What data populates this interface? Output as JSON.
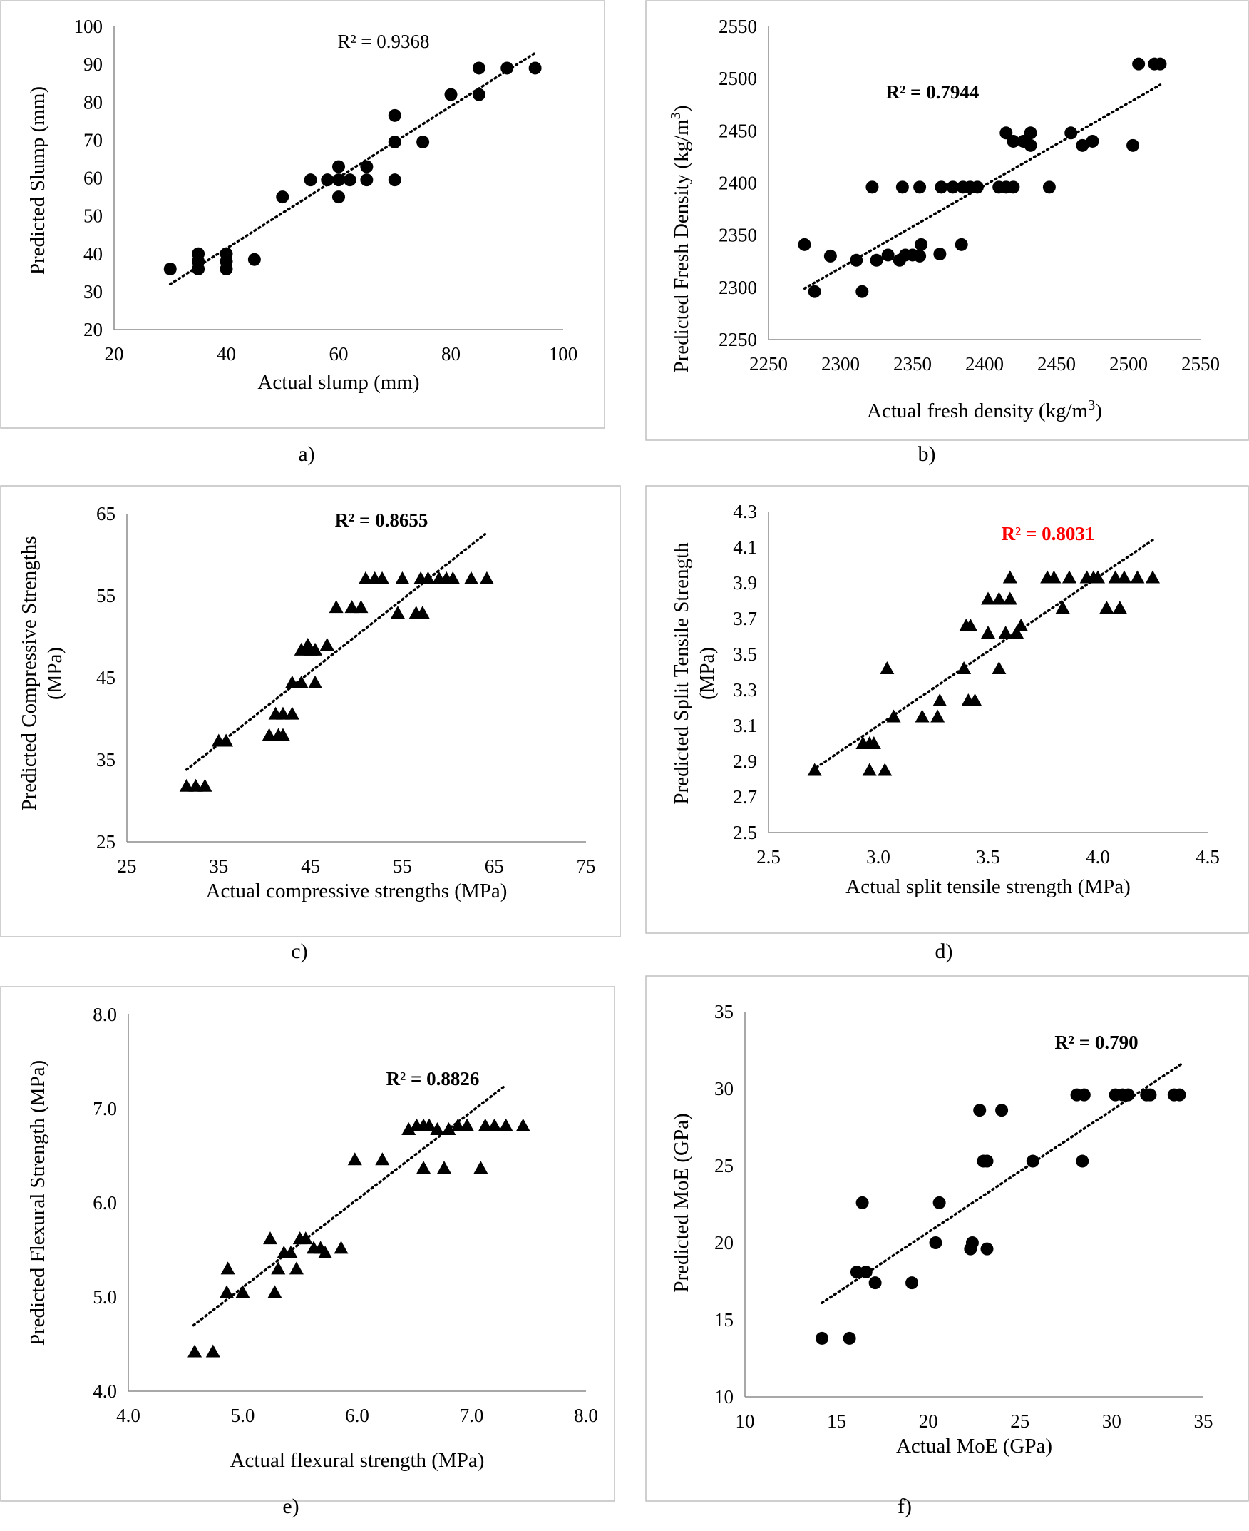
{
  "chart_data": [
    {
      "id": "a",
      "type": "scatter",
      "marker": "circle",
      "panel_label": "a)",
      "xlabel": "Actual slump (mm)",
      "ylabel": "Predicted Slump (mm)",
      "xlim": [
        20,
        100
      ],
      "xticks": [
        20,
        40,
        60,
        80,
        100
      ],
      "ylim": [
        20,
        100
      ],
      "yticks": [
        20,
        30,
        40,
        50,
        60,
        70,
        80,
        90,
        100
      ],
      "tick_decimals": 0,
      "annotation": "R² = 0.9368",
      "annotation_bold": false,
      "annotation_color": "#000000",
      "trendline": {
        "x": [
          30,
          95
        ],
        "y": [
          32,
          93
        ]
      },
      "points": [
        [
          30,
          36
        ],
        [
          35,
          40
        ],
        [
          35,
          36
        ],
        [
          35,
          38
        ],
        [
          40,
          40
        ],
        [
          40,
          38
        ],
        [
          40,
          36
        ],
        [
          45,
          38.5
        ],
        [
          50,
          55
        ],
        [
          55,
          59.5
        ],
        [
          58,
          59.5
        ],
        [
          60,
          63
        ],
        [
          60,
          59.5
        ],
        [
          60,
          55
        ],
        [
          62,
          59.5
        ],
        [
          65,
          63
        ],
        [
          65,
          59.5
        ],
        [
          70,
          76.5
        ],
        [
          70,
          69.5
        ],
        [
          70,
          59.5
        ],
        [
          75,
          69.5
        ],
        [
          80,
          82
        ],
        [
          85,
          89
        ],
        [
          85,
          82
        ],
        [
          90,
          89
        ],
        [
          95,
          89
        ]
      ]
    },
    {
      "id": "b",
      "type": "scatter",
      "marker": "circle",
      "panel_label": "b)",
      "xlabel": "Actual fresh density (kg/m³)",
      "ylabel": "Predicted Fresh Density (kg/m³)",
      "xlim": [
        2250,
        2550
      ],
      "xticks": [
        2250,
        2300,
        2350,
        2400,
        2450,
        2500,
        2550
      ],
      "ylim": [
        2250,
        2550
      ],
      "yticks": [
        2250,
        2300,
        2350,
        2400,
        2450,
        2500,
        2550
      ],
      "tick_decimals": 0,
      "annotation": "R² = 0.7944",
      "annotation_bold": true,
      "annotation_color": "#000000",
      "trendline": {
        "x": [
          2275,
          2522
        ],
        "y": [
          2299,
          2494
        ]
      },
      "points": [
        [
          2275,
          2341
        ],
        [
          2282,
          2296
        ],
        [
          2293,
          2330
        ],
        [
          2311,
          2326
        ],
        [
          2315,
          2296
        ],
        [
          2322,
          2396
        ],
        [
          2325,
          2326
        ],
        [
          2333,
          2331
        ],
        [
          2341,
          2326
        ],
        [
          2345,
          2331
        ],
        [
          2350,
          2331
        ],
        [
          2356,
          2341
        ],
        [
          2355,
          2330
        ],
        [
          2343,
          2396
        ],
        [
          2355,
          2396
        ],
        [
          2370,
          2396
        ],
        [
          2378,
          2396
        ],
        [
          2385,
          2396
        ],
        [
          2390,
          2396
        ],
        [
          2395,
          2396
        ],
        [
          2369,
          2332
        ],
        [
          2384,
          2341
        ],
        [
          2410,
          2396
        ],
        [
          2415,
          2396
        ],
        [
          2420,
          2396
        ],
        [
          2415,
          2448
        ],
        [
          2420,
          2440
        ],
        [
          2427,
          2440
        ],
        [
          2432,
          2436
        ],
        [
          2432,
          2448
        ],
        [
          2445,
          2396
        ],
        [
          2460,
          2448
        ],
        [
          2468,
          2436
        ],
        [
          2475,
          2440
        ],
        [
          2503,
          2436
        ],
        [
          2507,
          2514
        ],
        [
          2518,
          2514
        ],
        [
          2522,
          2514
        ]
      ]
    },
    {
      "id": "c",
      "type": "scatter",
      "marker": "triangle",
      "panel_label": "c)",
      "xlabel": "Actual compressive strengths (MPa)",
      "ylabel": "Predicted Compressive Strengths (MPa)",
      "ylabel_lines": [
        "Predicted Compressive Strengths",
        "(MPa)"
      ],
      "xlim": [
        25,
        75
      ],
      "xticks": [
        25,
        35,
        45,
        55,
        65,
        75
      ],
      "ylim": [
        25,
        65
      ],
      "yticks": [
        25,
        35,
        45,
        55,
        65
      ],
      "tick_decimals": 0,
      "annotation": "R² = 0.8655",
      "annotation_bold": true,
      "annotation_color": "#000000",
      "trendline": {
        "x": [
          31.5,
          64
        ],
        "y": [
          33.8,
          62.5
        ]
      },
      "points": [
        [
          31.5,
          31.8
        ],
        [
          32.5,
          31.8
        ],
        [
          33.5,
          31.8
        ],
        [
          35,
          37.3
        ],
        [
          35.8,
          37.3
        ],
        [
          40.5,
          38
        ],
        [
          41.5,
          38
        ],
        [
          42,
          38
        ],
        [
          41.2,
          40.6
        ],
        [
          42,
          40.6
        ],
        [
          43,
          40.6
        ],
        [
          43,
          44.4
        ],
        [
          44,
          44.4
        ],
        [
          45.5,
          44.4
        ],
        [
          44,
          48.4
        ],
        [
          45,
          48.4
        ],
        [
          45.5,
          48.4
        ],
        [
          44.7,
          49
        ],
        [
          46.8,
          49
        ],
        [
          47.8,
          53.6
        ],
        [
          49.5,
          53.6
        ],
        [
          50.5,
          53.6
        ],
        [
          51,
          57.1
        ],
        [
          52,
          57.1
        ],
        [
          52.8,
          57.1
        ],
        [
          55,
          57.1
        ],
        [
          57,
          57.1
        ],
        [
          57.8,
          57.1
        ],
        [
          59,
          57.1
        ],
        [
          59.8,
          57.1
        ],
        [
          60.5,
          57.1
        ],
        [
          62.5,
          57.1
        ],
        [
          64.2,
          57.1
        ],
        [
          54.5,
          52.9
        ],
        [
          56.5,
          52.9
        ],
        [
          57.2,
          52.9
        ]
      ]
    },
    {
      "id": "d",
      "type": "scatter",
      "marker": "triangle",
      "panel_label": "d)",
      "xlabel": "Actual split tensile strength (MPa)",
      "ylabel": "Predicted Split Tensile Strength (MPa)",
      "ylabel_lines": [
        "Predicted Split Tensile Strength",
        "(MPa)"
      ],
      "xlim": [
        2.5,
        4.5
      ],
      "xticks": [
        2.5,
        3.0,
        3.5,
        4.0,
        4.5
      ],
      "ylim": [
        2.5,
        4.3
      ],
      "yticks": [
        2.5,
        2.7,
        2.9,
        3.1,
        3.3,
        3.5,
        3.7,
        3.9,
        4.1,
        4.3
      ],
      "tick_decimals": 1,
      "annotation": "R² = 0.8031",
      "annotation_bold": true,
      "annotation_color": "#ff0000",
      "trendline": {
        "x": [
          2.7,
          4.25
        ],
        "y": [
          2.85,
          4.14
        ]
      },
      "points": [
        [
          2.71,
          2.85
        ],
        [
          2.96,
          2.85
        ],
        [
          3.03,
          2.85
        ],
        [
          2.93,
          3.0
        ],
        [
          2.96,
          3.0
        ],
        [
          2.98,
          3.0
        ],
        [
          3.04,
          3.42
        ],
        [
          3.07,
          3.15
        ],
        [
          3.2,
          3.15
        ],
        [
          3.27,
          3.15
        ],
        [
          3.28,
          3.24
        ],
        [
          3.41,
          3.24
        ],
        [
          3.44,
          3.24
        ],
        [
          3.39,
          3.42
        ],
        [
          3.55,
          3.42
        ],
        [
          3.4,
          3.66
        ],
        [
          3.42,
          3.66
        ],
        [
          3.5,
          3.62
        ],
        [
          3.58,
          3.62
        ],
        [
          3.63,
          3.62
        ],
        [
          3.65,
          3.66
        ],
        [
          3.5,
          3.81
        ],
        [
          3.55,
          3.81
        ],
        [
          3.6,
          3.81
        ],
        [
          3.6,
          3.93
        ],
        [
          3.77,
          3.93
        ],
        [
          3.8,
          3.93
        ],
        [
          3.87,
          3.93
        ],
        [
          3.95,
          3.93
        ],
        [
          3.98,
          3.93
        ],
        [
          4.0,
          3.93
        ],
        [
          4.08,
          3.93
        ],
        [
          4.12,
          3.93
        ],
        [
          4.18,
          3.93
        ],
        [
          4.25,
          3.93
        ],
        [
          3.84,
          3.76
        ],
        [
          4.04,
          3.76
        ],
        [
          4.1,
          3.76
        ]
      ]
    },
    {
      "id": "e",
      "type": "scatter",
      "marker": "triangle",
      "panel_label": "e)",
      "xlabel": "Actual flexural strength (MPa)",
      "ylabel": "Predicted Flexural Strength (MPa)",
      "xlim": [
        4.0,
        8.0
      ],
      "xticks": [
        4.0,
        5.0,
        6.0,
        7.0,
        8.0
      ],
      "ylim": [
        4.0,
        8.0
      ],
      "yticks": [
        4.0,
        5.0,
        6.0,
        7.0,
        8.0
      ],
      "tick_decimals": 1,
      "annotation": "R² = 0.8826",
      "annotation_bold": true,
      "annotation_color": "#000000",
      "trendline": {
        "x": [
          4.57,
          7.3
        ],
        "y": [
          4.7,
          7.25
        ]
      },
      "points": [
        [
          4.58,
          4.42
        ],
        [
          4.74,
          4.42
        ],
        [
          4.86,
          5.05
        ],
        [
          4.87,
          5.3
        ],
        [
          5.0,
          5.05
        ],
        [
          5.24,
          5.62
        ],
        [
          5.28,
          5.05
        ],
        [
          5.31,
          5.3
        ],
        [
          5.36,
          5.47
        ],
        [
          5.42,
          5.47
        ],
        [
          5.47,
          5.3
        ],
        [
          5.5,
          5.62
        ],
        [
          5.55,
          5.62
        ],
        [
          5.62,
          5.52
        ],
        [
          5.68,
          5.52
        ],
        [
          5.72,
          5.47
        ],
        [
          5.86,
          5.52
        ],
        [
          5.98,
          6.46
        ],
        [
          6.22,
          6.46
        ],
        [
          6.45,
          6.78
        ],
        [
          6.52,
          6.82
        ],
        [
          6.58,
          6.82
        ],
        [
          6.63,
          6.82
        ],
        [
          6.7,
          6.78
        ],
        [
          6.8,
          6.78
        ],
        [
          6.88,
          6.82
        ],
        [
          6.96,
          6.82
        ],
        [
          7.12,
          6.82
        ],
        [
          7.2,
          6.82
        ],
        [
          7.3,
          6.82
        ],
        [
          7.45,
          6.82
        ],
        [
          6.58,
          6.37
        ],
        [
          6.76,
          6.37
        ],
        [
          7.08,
          6.37
        ]
      ]
    },
    {
      "id": "f",
      "type": "scatter",
      "marker": "circle",
      "panel_label": "f)",
      "xlabel": "Actual MoE (GPa)",
      "ylabel": "Predicted MoE (GPa)",
      "xlim": [
        10,
        35
      ],
      "xticks": [
        10,
        15,
        20,
        25,
        30,
        35
      ],
      "ylim": [
        10,
        35
      ],
      "yticks": [
        10,
        15,
        20,
        25,
        30,
        35
      ],
      "tick_decimals": 0,
      "annotation": "R² = 0.790",
      "annotation_bold": true,
      "annotation_color": "#000000",
      "trendline": {
        "x": [
          14.2,
          33.8
        ],
        "y": [
          16.1,
          31.6
        ]
      },
      "points": [
        [
          14.2,
          13.8
        ],
        [
          15.7,
          13.8
        ],
        [
          16.1,
          18.1
        ],
        [
          16.6,
          18.1
        ],
        [
          16.4,
          22.6
        ],
        [
          17.1,
          17.4
        ],
        [
          19.1,
          17.4
        ],
        [
          20.4,
          20
        ],
        [
          20.6,
          22.6
        ],
        [
          22.3,
          19.6
        ],
        [
          22.4,
          20
        ],
        [
          23.2,
          19.6
        ],
        [
          22.8,
          28.6
        ],
        [
          24,
          28.6
        ],
        [
          23,
          25.3
        ],
        [
          23.2,
          25.3
        ],
        [
          25.7,
          25.3
        ],
        [
          28.1,
          29.6
        ],
        [
          28.4,
          25.3
        ],
        [
          28.5,
          29.6
        ],
        [
          30.2,
          29.6
        ],
        [
          30.6,
          29.6
        ],
        [
          30.9,
          29.6
        ],
        [
          31.9,
          29.6
        ],
        [
          32.1,
          29.6
        ],
        [
          33.4,
          29.6
        ],
        [
          33.7,
          29.6
        ]
      ]
    }
  ]
}
